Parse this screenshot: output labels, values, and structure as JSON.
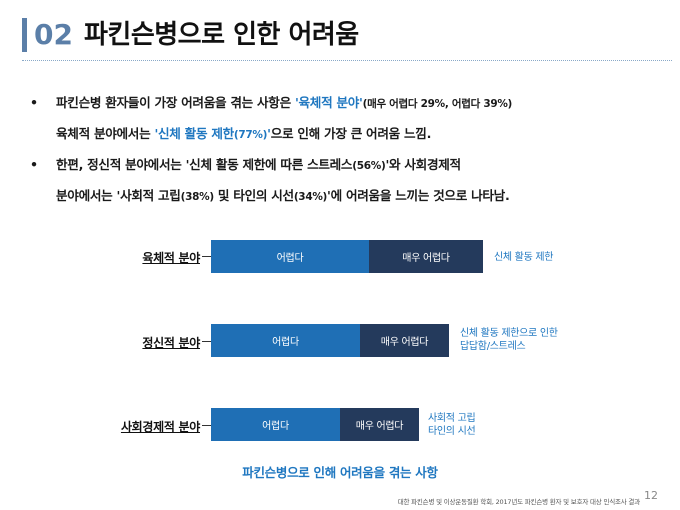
{
  "header": {
    "number": "02",
    "title": "파킨슨병으로 인한 어려움"
  },
  "bullets": {
    "b1": {
      "dot": "•",
      "line1_prefix": "파킨슨병 환자들이 가장 어려움을 겪는 사항은 ",
      "line1_highlight": "'육체적 분야'",
      "line1_paren": "(매우 어렵다 29%, 어렵다 39%)",
      "line2_prefix": "육체적 분야에서는 ",
      "line2_hl_open": "'신체 활동 제한",
      "line2_hl_pct": "(77%)",
      "line2_hl_close": "'",
      "line2_suffix": "으로 인해 가장 큰 어려움 느낌."
    },
    "b2": {
      "dot": "•",
      "line1_main": "한편, 정신적 분야에서는 '신체 활동 제한에 따른 스트레스",
      "line1_pct": "(56%)",
      "line1_suffix": "'와 사회경제적",
      "line2_a": "분야에서는 '사회적 고립",
      "line2_pct1": "(38%)",
      "line2_b": " 및 타인의 시선",
      "line2_pct2": "(34%)",
      "line2_c": "'에 어려움을 느끼는 것으로 나타남."
    }
  },
  "chart": {
    "rows": [
      {
        "label": "육체적 분야",
        "seg1": "어렵다",
        "seg2": "매우 어렵다",
        "note1": "신체 활동 제한",
        "note2": ""
      },
      {
        "label": "정신적 분야",
        "seg1": "어렵다",
        "seg2": "매우 어렵다",
        "note1": "신체 활동 제한으로 인한",
        "note2": "답답함/스트레스"
      },
      {
        "label": "사회경제적 분야",
        "seg1": "어렵다",
        "seg2": "매우 어렵다",
        "note1": "사회적 고립",
        "note2": "타인의 시선"
      }
    ],
    "caption": "파킨슨병으로 인해 어려움을 겪는 사항"
  },
  "chart_data": {
    "type": "bar",
    "categories": [
      "육체적 분야",
      "정신적 분야",
      "사회경제적 분야"
    ],
    "series": [
      {
        "name": "어렵다",
        "values": [
          39,
          null,
          null
        ]
      },
      {
        "name": "매우 어렵다",
        "values": [
          29,
          null,
          null
        ]
      }
    ],
    "title": "파킨슨병으로 인해 어려움을 겪는 사항",
    "legend": "inline labels inside bars",
    "grid": false
  },
  "footer": {
    "source": "대한 파킨슨병 및 이상운동질환 학회, 2017년도 파킨슨병 환자 및 보호자 대상 인식조사 결과",
    "page": "12"
  },
  "colors": {
    "accent": "#5b7fa8",
    "highlight": "#1f77c0",
    "bar_hard": "#1f6fb5",
    "bar_very_hard": "#243a5c"
  }
}
